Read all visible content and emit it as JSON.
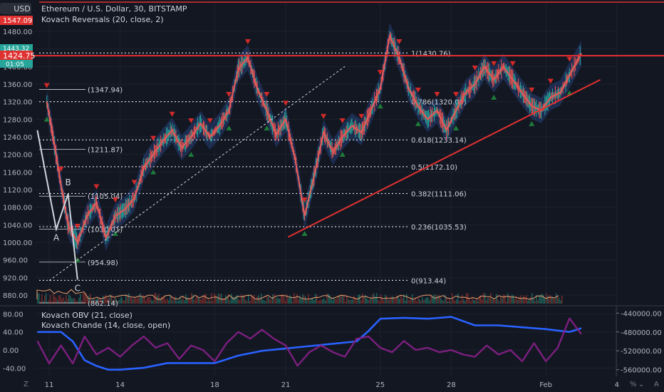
{
  "header": {
    "currency_badge": "USD",
    "title": "Ethereum / U.S. Dollar, 30, BITSTAMP",
    "indicator_main": "Kovach Reversals (20, close, 2)",
    "indicator_sub_1": "Kovach OBV (21, close)",
    "indicator_sub_2": "Kovach Chande (14, close, open)",
    "price_top_label": "1547.09",
    "price_tag": "1424.75",
    "price_tag_small": "1443.32",
    "countdown": "01:05"
  },
  "colors": {
    "background": "#131722",
    "grid": "#1e222d",
    "price_line": "#e03131",
    "band": "#2a4a8a",
    "red_ma": "#e05b5b",
    "obv": "#2962ff",
    "chande": "#7b1f7e",
    "up_marker": "#1e7a3a",
    "down_marker": "#d12a2a"
  },
  "chart_data": [
    {
      "type": "line",
      "name": "main",
      "title": "Ethereum / U.S. Dollar, 30, BITSTAMP",
      "y_ticks": [
        880,
        920,
        960,
        1000,
        1040,
        1080,
        1120,
        1160,
        1200,
        1240,
        1280,
        1320,
        1360,
        1400,
        1440,
        1480
      ],
      "y_tick_labels": [
        "880.00",
        "920.00",
        "960.00",
        "1000.00",
        "1040.00",
        "1080.00",
        "1120.00",
        "1160.00",
        "1200.00",
        "1240.00",
        "1280.00",
        "1320.00",
        "1360.00",
        "1400.00",
        "1440.00",
        "1480.00"
      ],
      "ylim": [
        860,
        1515
      ],
      "x_ticks": [
        "11",
        "14",
        "18",
        "21",
        "25",
        "28",
        "Feb",
        "4"
      ],
      "series": [
        {
          "x": [
            10.9,
            11.2,
            11.5,
            11.8,
            12.2,
            12.6,
            13.0,
            13.4,
            13.8,
            14.2,
            14.6,
            15.0,
            15.4,
            15.8,
            16.2,
            16.6,
            17.0,
            17.4,
            17.8,
            18.2,
            18.6,
            19.0,
            19.4,
            19.8,
            20.2,
            20.6,
            21.0,
            21.4,
            21.8,
            22.2,
            22.6,
            23.0,
            23.4,
            23.8,
            24.2,
            24.6,
            25.0,
            25.4,
            25.8,
            26.2,
            26.6,
            27.0,
            27.4,
            27.8,
            28.2,
            28.6,
            29.0,
            29.4,
            29.8,
            30.2,
            30.6,
            31.0,
            31.4,
            31.8,
            32.2,
            32.6,
            33.0,
            33.5
          ],
          "values": [
            1320,
            1230,
            1130,
            1040,
            1000,
            1060,
            1090,
            1010,
            1060,
            1075,
            1100,
            1170,
            1200,
            1230,
            1255,
            1215,
            1240,
            1270,
            1240,
            1265,
            1300,
            1395,
            1420,
            1350,
            1300,
            1245,
            1280,
            1190,
            1060,
            1150,
            1250,
            1205,
            1240,
            1265,
            1250,
            1300,
            1350,
            1470,
            1420,
            1350,
            1310,
            1280,
            1300,
            1255,
            1300,
            1340,
            1360,
            1400,
            1370,
            1400,
            1370,
            1340,
            1310,
            1300,
            1330,
            1340,
            1380,
            1430
          ]
        }
      ],
      "fib_levels": [
        {
          "ratio": "1",
          "value": 1430.76,
          "label": "1(1430.76)"
        },
        {
          "ratio": "0.786",
          "value": 1320.05,
          "label": "0.786(1320.05)"
        },
        {
          "ratio": "0.618",
          "value": 1233.14,
          "label": "0.618(1233.14)"
        },
        {
          "ratio": "0.5",
          "value": 1172.1,
          "label": "0.5(1172.10)"
        },
        {
          "ratio": "0.382",
          "value": 1111.06,
          "label": "0.382(1111.06)"
        },
        {
          "ratio": "0.236",
          "value": 1035.53,
          "label": "0.236(1035.53)"
        },
        {
          "ratio": "0",
          "value": 913.44,
          "label": "0(913.44)"
        }
      ],
      "price_levels": [
        {
          "value": 1347.94,
          "label": "(1347.94)"
        },
        {
          "value": 1211.87,
          "label": "(1211.87)"
        },
        {
          "value": 1105.04,
          "label": "(1105.04)"
        },
        {
          "value": 1030.01,
          "label": "(1030.01)"
        },
        {
          "value": 954.98,
          "label": "(954.98)"
        },
        {
          "value": 862.14,
          "label": "(862.14)"
        }
      ],
      "abc_points": [
        {
          "label": "A",
          "x": 11.3,
          "value": 1030
        },
        {
          "label": "B",
          "x": 11.8,
          "value": 1110
        },
        {
          "label": "C",
          "x": 12.2,
          "value": 915
        }
      ],
      "trendline": {
        "from": {
          "x": 21.1,
          "value": 1012
        },
        "to": {
          "x": 34.3,
          "value": 1370
        }
      },
      "horizontal_line": 1424.75
    },
    {
      "type": "line",
      "name": "oscillator",
      "y_ticks_left": [
        -40,
        0,
        40,
        80
      ],
      "y_tick_labels_left": [
        "-40.00",
        "0.00",
        "40.00",
        "80.00"
      ],
      "ylim_left": [
        -52,
        90
      ],
      "y_ticks_right": [
        -560000,
        -520000,
        -480000,
        -440000
      ],
      "y_tick_labels_right": [
        "-560000.00",
        "-520000.00",
        "-480000.00",
        "-440000.00"
      ],
      "ylim_right": [
        -568000,
        -432000
      ],
      "series": [
        {
          "name": "Kovach OBV",
          "axis": "right",
          "x": [
            10.5,
            11.5,
            12.0,
            12.5,
            13.0,
            13.5,
            14.0,
            15.0,
            16.0,
            17.0,
            18.0,
            19.0,
            20.0,
            21.0,
            22.0,
            23.0,
            24.0,
            24.5,
            25.0,
            26.0,
            27.0,
            28.0,
            29.0,
            30.0,
            31.0,
            32.0,
            33.0,
            33.5
          ],
          "values": [
            -480000,
            -480000,
            -500000,
            -540000,
            -552000,
            -560000,
            -560000,
            -556000,
            -546000,
            -546000,
            -546000,
            -530000,
            -520000,
            -515000,
            -510000,
            -505000,
            -500000,
            -478000,
            -452000,
            -450000,
            -452000,
            -448000,
            -466000,
            -466000,
            -470000,
            -474000,
            -480000,
            -472000
          ]
        },
        {
          "name": "Kovach Chande",
          "axis": "left",
          "x": [
            10.5,
            11.0,
            11.5,
            12.0,
            12.5,
            13.0,
            13.5,
            14.0,
            14.5,
            15.0,
            15.5,
            16.0,
            16.5,
            17.0,
            17.5,
            18.0,
            18.5,
            19.0,
            19.5,
            20.0,
            20.5,
            21.0,
            21.5,
            22.0,
            22.5,
            23.0,
            23.5,
            24.0,
            24.5,
            25.0,
            25.5,
            26.0,
            26.5,
            27.0,
            27.5,
            28.0,
            28.5,
            29.0,
            29.5,
            30.0,
            30.5,
            31.0,
            31.5,
            32.0,
            32.5,
            33.0,
            33.5
          ],
          "values": [
            20,
            -30,
            10,
            -30,
            30,
            -10,
            5,
            -15,
            10,
            30,
            5,
            15,
            -20,
            10,
            0,
            -25,
            15,
            40,
            25,
            45,
            25,
            10,
            -35,
            -5,
            10,
            -5,
            -15,
            25,
            30,
            5,
            -5,
            20,
            0,
            5,
            -5,
            0,
            -10,
            -15,
            10,
            -10,
            0,
            -25,
            15,
            -25,
            5,
            70,
            35
          ]
        }
      ]
    }
  ]
}
